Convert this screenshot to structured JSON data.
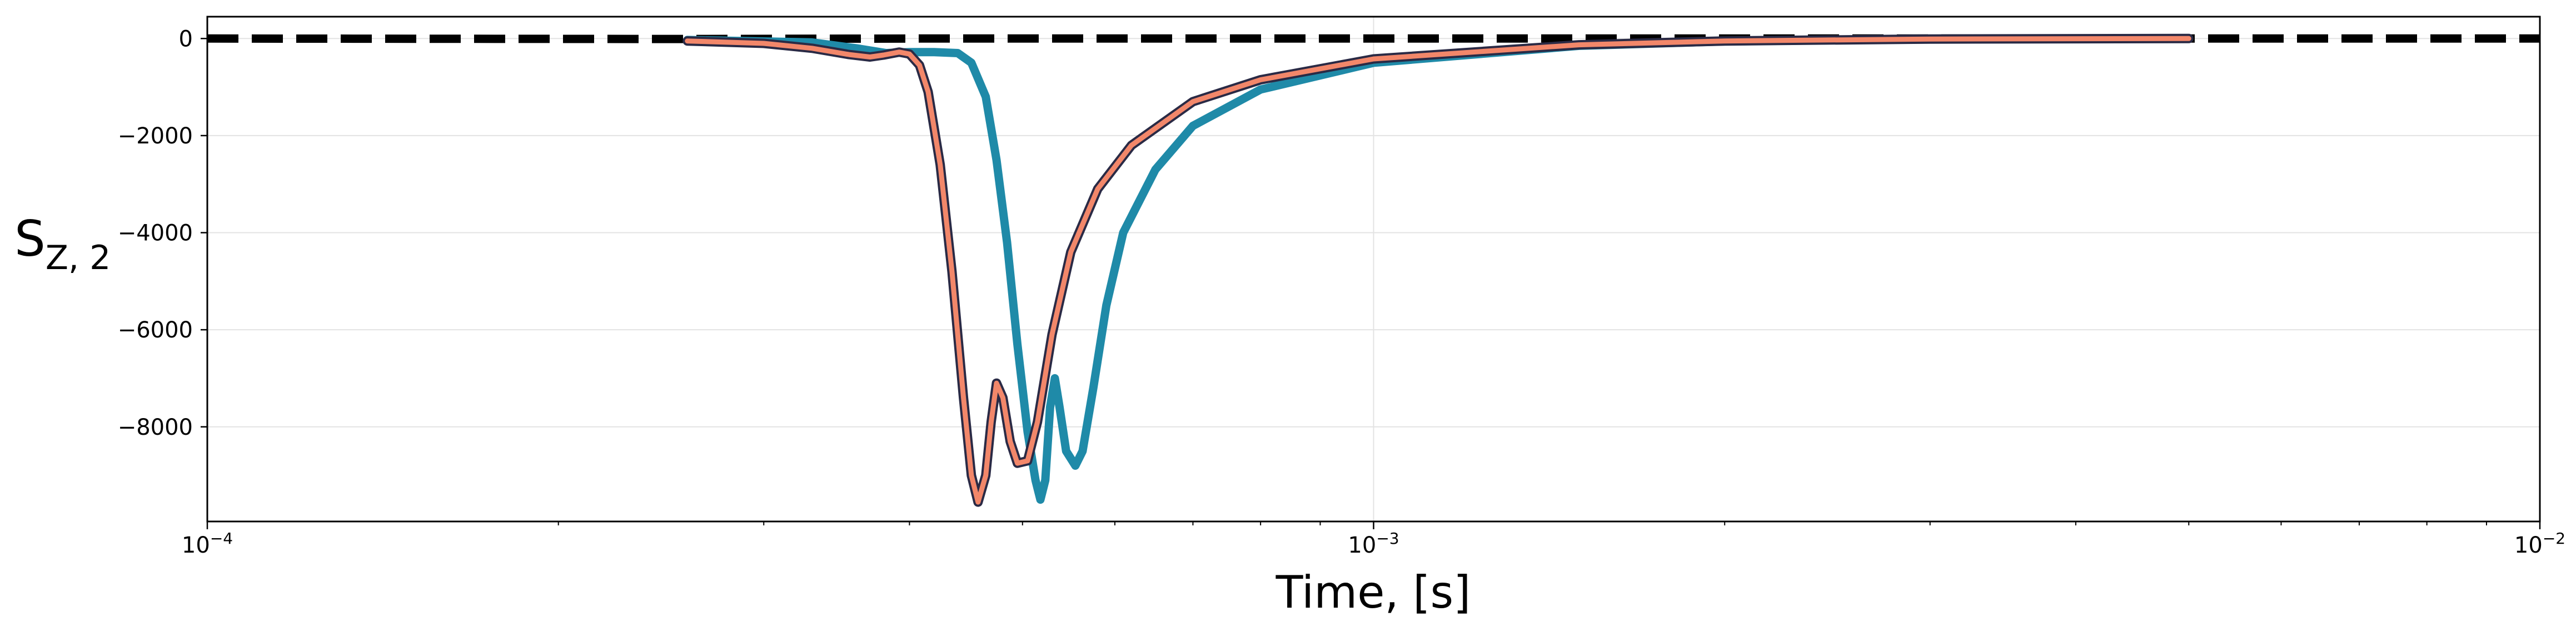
{
  "chart_data": {
    "type": "line",
    "title": "",
    "xlabel": "Time, [s]",
    "ylabel": {
      "base": "S",
      "sub": "Z, 2"
    },
    "xscale": "log",
    "xlim": [
      0.0001,
      0.01
    ],
    "ylim": [
      -9950,
      450
    ],
    "grid": true,
    "legend": "none",
    "x_ticks": [
      {
        "value": 0.0001,
        "base": "10",
        "exp": "−4"
      },
      {
        "value": 0.001,
        "base": "10",
        "exp": "−3"
      },
      {
        "value": 0.01,
        "base": "10",
        "exp": "−2"
      }
    ],
    "y_ticks": [
      {
        "value": 0,
        "label": "0"
      },
      {
        "value": -2000,
        "label": "−2000"
      },
      {
        "value": -4000,
        "label": "−4000"
      },
      {
        "value": -6000,
        "label": "−6000"
      },
      {
        "value": -8000,
        "label": "−8000"
      }
    ],
    "series": [
      {
        "color": "#000000",
        "style": "dashed",
        "width": 15,
        "points": [
          [
            0.0001,
            0
          ],
          [
            0.00026,
            -10
          ],
          [
            0.0004,
            0
          ],
          [
            0.0051,
            0
          ],
          [
            0.01,
            0
          ]
        ]
      },
      {
        "color": "#1f8aa8",
        "style": "solid",
        "width": 15,
        "points": [
          [
            0.000258,
            -30
          ],
          [
            0.00033,
            -80
          ],
          [
            0.00036,
            -200
          ],
          [
            0.000382,
            -300
          ],
          [
            0.0004,
            -280
          ],
          [
            0.00042,
            -280
          ],
          [
            0.00044,
            -300
          ],
          [
            0.000452,
            -500
          ],
          [
            0.000465,
            -1200
          ],
          [
            0.000475,
            -2500
          ],
          [
            0.000485,
            -4200
          ],
          [
            0.000495,
            -6300
          ],
          [
            0.000505,
            -8100
          ],
          [
            0.000513,
            -9100
          ],
          [
            0.000518,
            -9500
          ],
          [
            0.000523,
            -9100
          ],
          [
            0.000528,
            -7600
          ],
          [
            0.000533,
            -7000
          ],
          [
            0.000538,
            -7600
          ],
          [
            0.000545,
            -8500
          ],
          [
            0.000555,
            -8800
          ],
          [
            0.000563,
            -8500
          ],
          [
            0.000575,
            -7200
          ],
          [
            0.00059,
            -5500
          ],
          [
            0.00061,
            -4000
          ],
          [
            0.00065,
            -2700
          ],
          [
            0.0007,
            -1800
          ],
          [
            0.0008,
            -1050
          ],
          [
            0.001,
            -500
          ],
          [
            0.0015,
            -150
          ],
          [
            0.002,
            -60
          ],
          [
            0.003,
            -15
          ],
          [
            0.005,
            0
          ]
        ]
      },
      {
        "color": "#2a2a45",
        "style": "solid",
        "width": 17,
        "points": [
          [
            0.000258,
            -50
          ],
          [
            0.0003,
            -100
          ],
          [
            0.00033,
            -200
          ],
          [
            0.000355,
            -330
          ],
          [
            0.00037,
            -380
          ],
          [
            0.00038,
            -340
          ],
          [
            0.000392,
            -280
          ],
          [
            0.0004,
            -320
          ],
          [
            0.000408,
            -550
          ],
          [
            0.000415,
            -1100
          ],
          [
            0.000425,
            -2600
          ],
          [
            0.000435,
            -4800
          ],
          [
            0.000445,
            -7400
          ],
          [
            0.000452,
            -9000
          ],
          [
            0.000458,
            -9550
          ],
          [
            0.000465,
            -9000
          ],
          [
            0.00047,
            -7900
          ],
          [
            0.000475,
            -7100
          ],
          [
            0.000481,
            -7400
          ],
          [
            0.000488,
            -8300
          ],
          [
            0.000495,
            -8750
          ],
          [
            0.000505,
            -8700
          ],
          [
            0.000515,
            -7900
          ],
          [
            0.00053,
            -6100
          ],
          [
            0.00055,
            -4400
          ],
          [
            0.00058,
            -3100
          ],
          [
            0.00062,
            -2200
          ],
          [
            0.0007,
            -1300
          ],
          [
            0.0008,
            -850
          ],
          [
            0.001,
            -420
          ],
          [
            0.0015,
            -130
          ],
          [
            0.002,
            -50
          ],
          [
            0.003,
            -10
          ],
          [
            0.005,
            0
          ]
        ]
      },
      {
        "color": "#f2876a",
        "style": "solid",
        "width": 9,
        "points": [
          [
            0.000258,
            -50
          ],
          [
            0.0003,
            -100
          ],
          [
            0.00033,
            -200
          ],
          [
            0.000355,
            -330
          ],
          [
            0.00037,
            -380
          ],
          [
            0.00038,
            -340
          ],
          [
            0.000392,
            -280
          ],
          [
            0.0004,
            -320
          ],
          [
            0.000408,
            -550
          ],
          [
            0.000415,
            -1100
          ],
          [
            0.000425,
            -2600
          ],
          [
            0.000435,
            -4800
          ],
          [
            0.000445,
            -7400
          ],
          [
            0.000452,
            -9000
          ],
          [
            0.000458,
            -9550
          ],
          [
            0.000465,
            -9000
          ],
          [
            0.00047,
            -7900
          ],
          [
            0.000475,
            -7100
          ],
          [
            0.000481,
            -7400
          ],
          [
            0.000488,
            -8300
          ],
          [
            0.000495,
            -8750
          ],
          [
            0.000505,
            -8700
          ],
          [
            0.000515,
            -7900
          ],
          [
            0.00053,
            -6100
          ],
          [
            0.00055,
            -4400
          ],
          [
            0.00058,
            -3100
          ],
          [
            0.00062,
            -2200
          ],
          [
            0.0007,
            -1300
          ],
          [
            0.0008,
            -850
          ],
          [
            0.001,
            -420
          ],
          [
            0.0015,
            -130
          ],
          [
            0.002,
            -50
          ],
          [
            0.003,
            -10
          ],
          [
            0.005,
            0
          ]
        ]
      }
    ]
  }
}
